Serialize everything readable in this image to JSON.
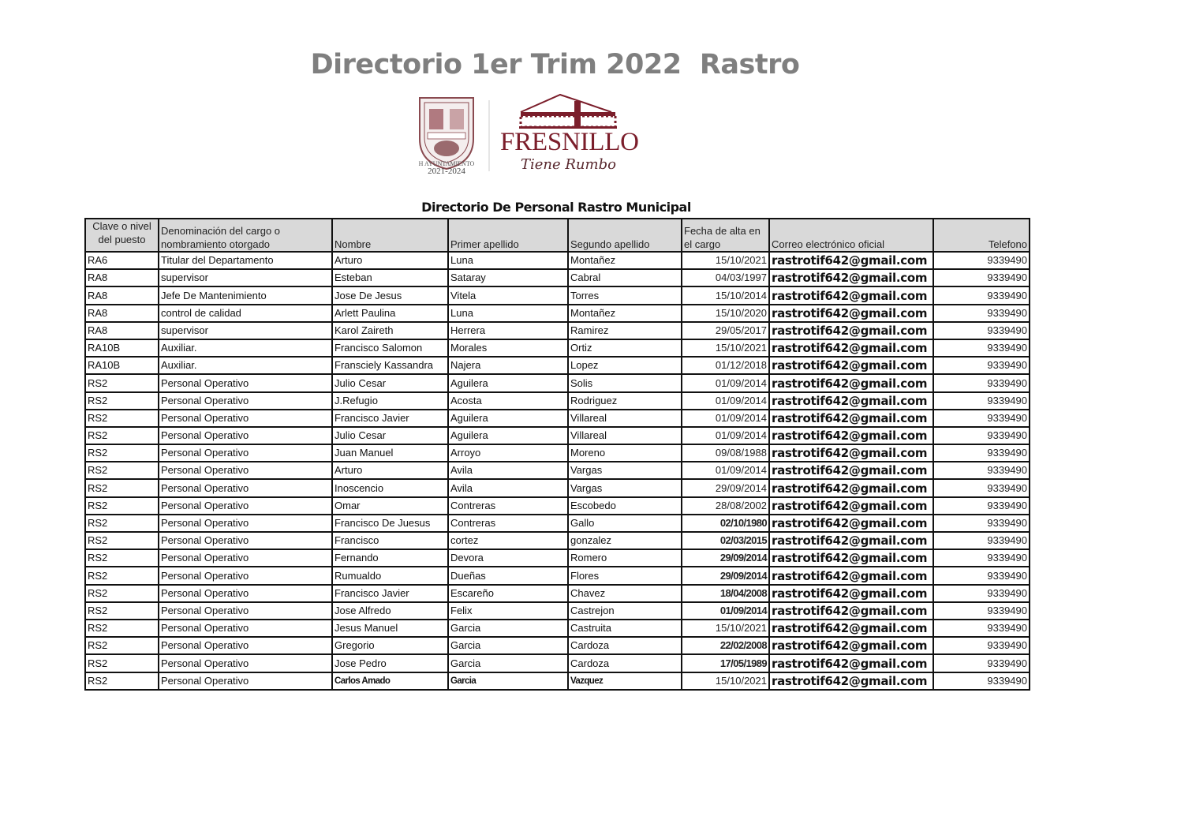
{
  "document": {
    "title": "Directorio 1er Trim 2022  Rastro",
    "subtitle": "Directorio De Personal Rastro Municipal",
    "logo": {
      "seal_caption_1": "H AYUNTAMIENTO",
      "seal_caption_2": "2021-2024",
      "brand": "FRESNILLO",
      "tagline": "Tiene Rumbo",
      "brand_color": "#7b1e2b"
    }
  },
  "table": {
    "headers": [
      "Clave o nivel del puesto",
      "Denominación del cargo o nombramiento otorgado",
      "Nombre",
      "Primer apellido",
      "Segundo apellido",
      "Fecha de alta en el cargo",
      "Correo electrónico oficial",
      "Telefono"
    ],
    "rows": [
      [
        "RA6",
        "Titular del Departamento",
        "Arturo",
        "Luna",
        "Montañez",
        "15/10/2021",
        "rastrotif642@gmail.com",
        "9339490"
      ],
      [
        "RA8",
        "supervisor",
        "Esteban",
        "Sataray",
        "Cabral",
        "04/03/1997",
        "rastrotif642@gmail.com",
        "9339490"
      ],
      [
        "RA8",
        "Jefe De Mantenimiento",
        "Jose De Jesus",
        "Vitela",
        "Torres",
        "15/10/2014",
        "rastrotif642@gmail.com",
        "9339490"
      ],
      [
        "RA8",
        "control de calidad",
        "Arlett Paulina",
        "Luna",
        "Montañez",
        "15/10/2020",
        "rastrotif642@gmail.com",
        "9339490"
      ],
      [
        "RA8",
        "supervisor",
        "Karol Zaireth",
        "Herrera",
        "Ramirez",
        "29/05/2017",
        "rastrotif642@gmail.com",
        "9339490"
      ],
      [
        "RA10B",
        "Auxiliar.",
        "Francisco Salomon",
        "Morales",
        "Ortiz",
        "15/10/2021",
        "rastrotif642@gmail.com",
        "9339490"
      ],
      [
        "RA10B",
        "Auxiliar.",
        "Fransciely Kassandra",
        "Najera",
        "Lopez",
        "01/12/2018",
        "rastrotif642@gmail.com",
        "9339490"
      ],
      [
        "RS2",
        "Personal Operativo",
        "Julio Cesar",
        "Aguilera",
        "Solis",
        "01/09/2014",
        "rastrotif642@gmail.com",
        "9339490"
      ],
      [
        "RS2",
        "Personal Operativo",
        "J.Refugio",
        "Acosta",
        "Rodriguez",
        "01/09/2014",
        "rastrotif642@gmail.com",
        "9339490"
      ],
      [
        "RS2",
        "Personal Operativo",
        "Francisco Javier",
        "Aguilera",
        "Villareal",
        "01/09/2014",
        "rastrotif642@gmail.com",
        "9339490"
      ],
      [
        "RS2",
        "Personal Operativo",
        "Julio Cesar",
        "Aguilera",
        "Villareal",
        "01/09/2014",
        "rastrotif642@gmail.com",
        "9339490"
      ],
      [
        "RS2",
        "Personal Operativo",
        "Juan Manuel",
        "Arroyo",
        "Moreno",
        "09/08/1988",
        "rastrotif642@gmail.com",
        "9339490"
      ],
      [
        "RS2",
        "Personal Operativo",
        "Arturo",
        "Avila",
        "Vargas",
        "01/09/2014",
        "rastrotif642@gmail.com",
        "9339490"
      ],
      [
        "RS2",
        "Personal Operativo",
        "Inoscencio",
        "Avila",
        "Vargas",
        "29/09/2014",
        "rastrotif642@gmail.com",
        "9339490"
      ],
      [
        "RS2",
        "Personal Operativo",
        "Omar",
        "Contreras",
        "Escobedo",
        "28/08/2002",
        "rastrotif642@gmail.com",
        "9339490"
      ],
      [
        "RS2",
        "Personal Operativo",
        "Francisco De Juesus",
        "Contreras",
        "Gallo",
        "02/10/1980",
        "rastrotif642@gmail.com",
        "9339490"
      ],
      [
        "RS2",
        "Personal Operativo",
        "Francisco",
        "cortez",
        "gonzalez",
        "02/03/2015",
        "rastrotif642@gmail.com",
        "9339490"
      ],
      [
        "RS2",
        "Personal Operativo",
        "Fernando",
        "Devora",
        "Romero",
        "29/09/2014",
        "rastrotif642@gmail.com",
        "9339490"
      ],
      [
        "RS2",
        "Personal Operativo",
        "Rumualdo",
        "Dueñas",
        "Flores",
        "29/09/2014",
        "rastrotif642@gmail.com",
        "9339490"
      ],
      [
        "RS2",
        "Personal Operativo",
        "Francisco Javier",
        "Escareño",
        "Chavez",
        "18/04/2008",
        "rastrotif642@gmail.com",
        "9339490"
      ],
      [
        "RS2",
        "Personal Operativo",
        "Jose Alfredo",
        "Felix",
        "Castrejon",
        "01/09/2014",
        "rastrotif642@gmail.com",
        "9339490"
      ],
      [
        "RS2",
        "Personal Operativo",
        "Jesus Manuel",
        "Garcia",
        "Castruita",
        "15/10/2021",
        "rastrotif642@gmail.com",
        "9339490"
      ],
      [
        "RS2",
        "Personal Operativo",
        "Gregorio",
        "Garcia",
        "Cardoza",
        "22/02/2008",
        "rastrotif642@gmail.com",
        "9339490"
      ],
      [
        "RS2",
        "Personal Operativo",
        "Jose Pedro",
        "Garcia",
        "Cardoza",
        "17/05/1989",
        "rastrotif642@gmail.com",
        "9339490"
      ],
      [
        "RS2",
        "Personal Operativo",
        "Carlos Amado",
        "Garcia",
        "Vazquez",
        "15/10/2021",
        "rastrotif642@gmail.com",
        "9339490"
      ]
    ]
  }
}
